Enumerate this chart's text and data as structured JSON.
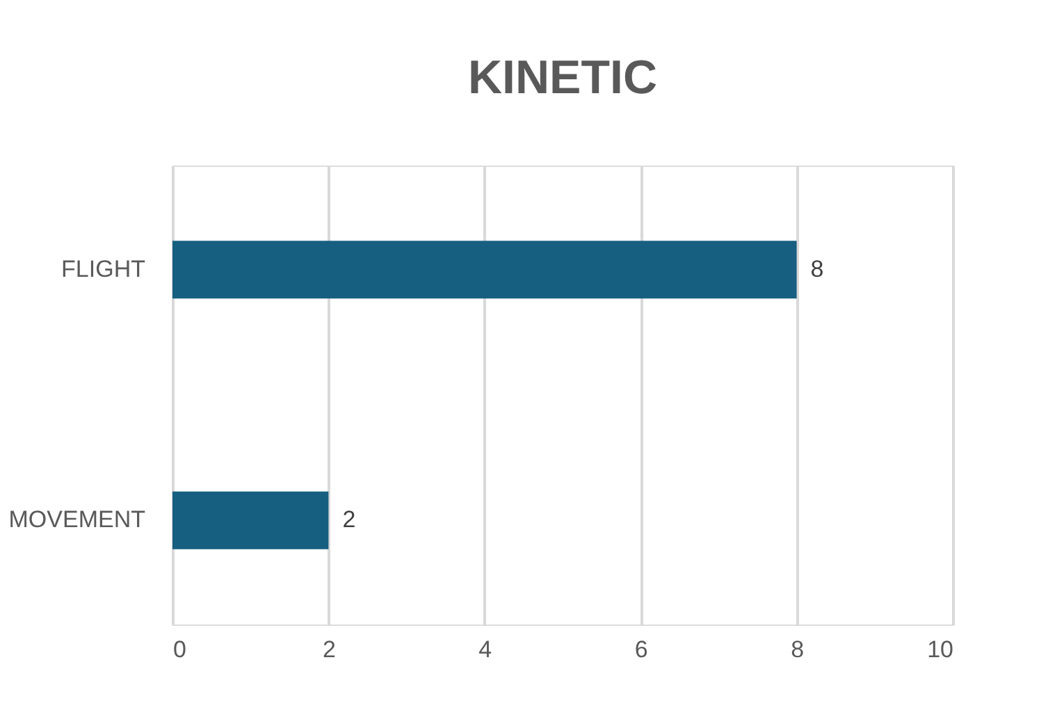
{
  "chart_data": {
    "type": "bar",
    "orientation": "horizontal",
    "title": "KINETIC",
    "categories": [
      "FLIGHT",
      "MOVEMENT"
    ],
    "values": [
      8,
      2
    ],
    "color": "#175f80",
    "xlim": [
      0,
      10
    ],
    "xticks": [
      0,
      2,
      4,
      6,
      8,
      10
    ],
    "grid": "x",
    "data_labels": true
  }
}
